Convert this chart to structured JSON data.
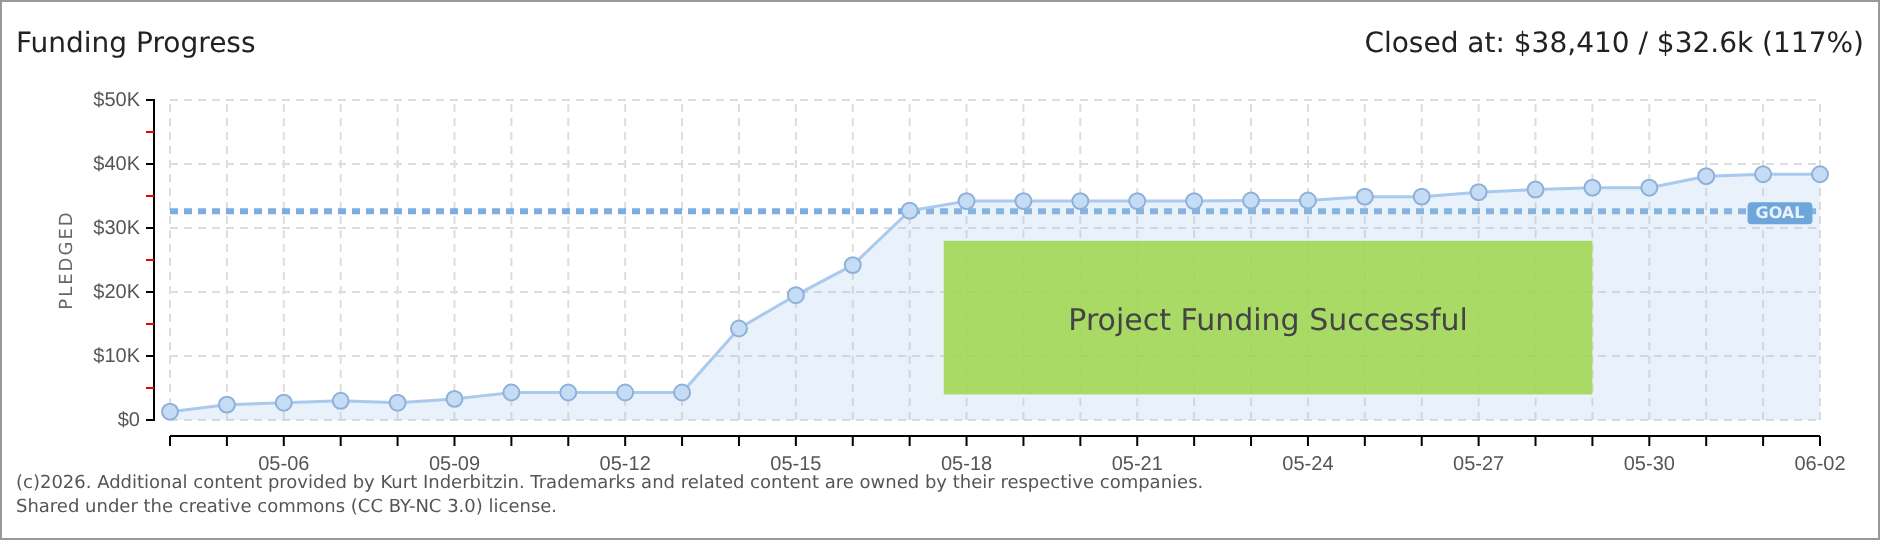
{
  "chart_data": {
    "type": "area",
    "title": "Funding Progress",
    "subtitle": "Closed at: $38,410 / $32.6k (117%)",
    "ylabel": "PLEDGED",
    "categories": [
      null,
      null,
      "05-06",
      null,
      null,
      "05-09",
      null,
      null,
      "05-12",
      null,
      null,
      "05-15",
      null,
      null,
      "05-18",
      null,
      null,
      "05-21",
      null,
      null,
      "05-24",
      null,
      null,
      "05-27",
      null,
      null,
      "05-30",
      null,
      null,
      "06-02"
    ],
    "series": [
      {
        "color": "#a9c9ee",
        "values": [
          1300,
          2400,
          2700,
          3000,
          2700,
          3300,
          4300,
          4300,
          4300,
          4300,
          14300,
          19500,
          24200,
          32700,
          34200,
          34200,
          34200,
          34200,
          34200,
          34300,
          34300,
          34900,
          34900,
          35600,
          36000,
          36300,
          36300,
          38100,
          38400,
          38400
        ]
      }
    ],
    "ylim": [
      0,
      50000
    ],
    "yticks": [
      {
        "value": 0,
        "label": "$0"
      },
      {
        "value": 5000,
        "label": null
      },
      {
        "value": 10000,
        "label": "$10K"
      },
      {
        "value": 15000,
        "label": null
      },
      {
        "value": 20000,
        "label": "$20K"
      },
      {
        "value": 25000,
        "label": null
      },
      {
        "value": 30000,
        "label": "$30K"
      },
      {
        "value": 35000,
        "label": null
      },
      {
        "value": 40000,
        "label": "$40K"
      },
      {
        "value": 45000,
        "label": null
      },
      {
        "value": 50000,
        "label": "$50K"
      }
    ],
    "ref_lines": [
      {
        "axis": "y",
        "value": 32600,
        "label": "GOAL",
        "color": "#5b9bd5",
        "line_style": "dashed"
      }
    ],
    "grid": true,
    "marker": "circle",
    "annotations": [
      "Project Funding Successful",
      "(c)2026. Additional content provided by Kurt Inderbitzin. Trademarks and related content are owned by their respective companies.",
      "Shared under the creative commons (CC BY-NC 3.0) license."
    ]
  }
}
